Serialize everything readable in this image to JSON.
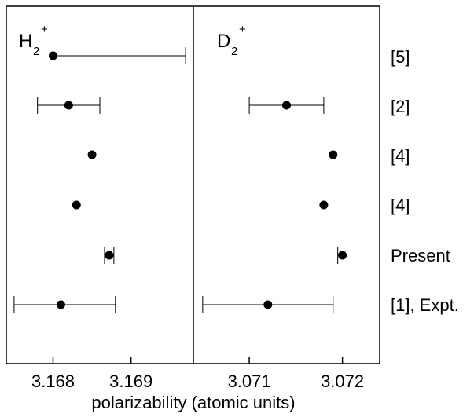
{
  "chart_data": {
    "type": "scatter",
    "xlabel": "polarizability (atomic units)",
    "row_labels": [
      "[5]",
      "[2]",
      "[4]",
      "[4]",
      "Present",
      "[1], Expt."
    ],
    "panels": [
      {
        "name": "H2+",
        "title_main": "H",
        "title_sub": "2",
        "title_sup": "+",
        "xlim": [
          3.1674,
          3.1698
        ],
        "ticks": [
          {
            "value": 3.168,
            "label": "3.168"
          },
          {
            "value": 3.169,
            "label": "3.169"
          }
        ],
        "points": [
          {
            "row": "[5]",
            "value": 3.168,
            "err_low": 3.168,
            "err_high": 3.1697
          },
          {
            "row": "[2]",
            "value": 3.1682,
            "err_low": 3.1678,
            "err_high": 3.1686
          },
          {
            "row": "[4]",
            "value": 3.1685,
            "err_low": null,
            "err_high": null
          },
          {
            "row": "[4]",
            "value": 3.1683,
            "err_low": null,
            "err_high": null
          },
          {
            "row": "Present",
            "value": 3.16872,
            "err_low": 3.16866,
            "err_high": 3.16878
          },
          {
            "row": "[1], Expt.",
            "value": 3.1681,
            "err_low": 3.1675,
            "err_high": 3.1688
          }
        ]
      },
      {
        "name": "D2+",
        "title_main": "D",
        "title_sub": "2",
        "title_sup": "+",
        "xlim": [
          3.0704,
          3.0724
        ],
        "ticks": [
          {
            "value": 3.071,
            "label": "3.071"
          },
          {
            "value": 3.072,
            "label": "3.072"
          }
        ],
        "points": [
          {
            "row": "[5]",
            "value": null,
            "err_low": null,
            "err_high": null
          },
          {
            "row": "[2]",
            "value": 3.0714,
            "err_low": 3.071,
            "err_high": 3.0718
          },
          {
            "row": "[4]",
            "value": 3.0719,
            "err_low": null,
            "err_high": null
          },
          {
            "row": "[4]",
            "value": 3.0718,
            "err_low": null,
            "err_high": null
          },
          {
            "row": "Present",
            "value": 3.072,
            "err_low": 3.07195,
            "err_high": 3.07205
          },
          {
            "row": "[1], Expt.",
            "value": 3.0712,
            "err_low": 3.0705,
            "err_high": 3.0719
          }
        ]
      }
    ]
  }
}
